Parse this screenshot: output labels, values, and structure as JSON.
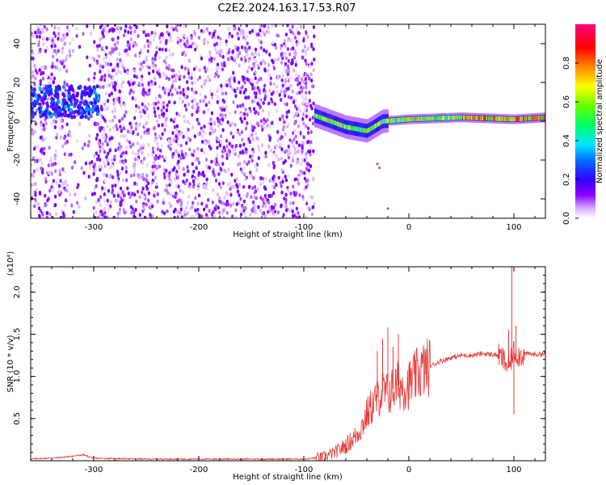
{
  "title": "C2E2.2024.163.17.53.R07",
  "chart_data": [
    {
      "type": "heatmap",
      "xlabel": "Height of straight line (km)",
      "ylabel": "Frequency (Hz)",
      "xlim": [
        -360,
        130
      ],
      "ylim": [
        -50,
        50
      ],
      "x_ticks": [
        -300,
        -200,
        -100,
        0,
        100
      ],
      "y_ticks": [
        -40,
        -20,
        0,
        20,
        40
      ],
      "colorbar": {
        "label": "Normalized spectral amplitude",
        "ticks": [
          0.0,
          0.2,
          0.4,
          0.6,
          0.8
        ],
        "tick_labels": [
          "0.0",
          "0.2",
          "0.4",
          "0.6",
          "0.8"
        ],
        "range": [
          0,
          1
        ],
        "colormap": [
          "#ffffff",
          "#d9b3ff",
          "#8a00ff",
          "#3300ff",
          "#0055ff",
          "#00e5ff",
          "#00ff66",
          "#66ff00",
          "#ffff00",
          "#ff8800",
          "#ff0000",
          "#ff0080"
        ]
      },
      "regions": [
        {
          "x_range": [
            -360,
            -90
          ],
          "freq_range": [
            -50,
            50
          ],
          "amplitude": "low (0.0-0.25)",
          "description_color": "purple noise"
        },
        {
          "x_range": [
            -360,
            -295
          ],
          "freq_center": 10,
          "freq_spread": 8,
          "amplitude": "0.2-0.45"
        },
        {
          "x_range": [
            -90,
            130
          ],
          "freq_center_track": [
            [
              -90,
              3
            ],
            [
              -60,
              -3
            ],
            [
              -40,
              -5
            ],
            [
              -25,
              0
            ],
            [
              0,
              1
            ],
            [
              50,
              2
            ],
            [
              100,
              1
            ],
            [
              130,
              2
            ]
          ],
          "amplitude": "0.3-1.0"
        }
      ]
    },
    {
      "type": "line",
      "xlabel": "Height of straight line (km)",
      "ylabel": "SNR (10 * v/v)",
      "y_multiplier": "(x10⁴)",
      "xlim": [
        -360,
        130
      ],
      "ylim": [
        0,
        2.3
      ],
      "x_ticks": [
        -300,
        -200,
        -100,
        0,
        100
      ],
      "y_ticks": [
        0.5,
        1.0,
        1.5,
        2.0
      ],
      "y_tick_labels": [
        "0.5",
        "1.0",
        "1.5",
        "2.0"
      ],
      "color": "#e83a3a",
      "series": [
        {
          "x": [
            -360,
            -330,
            -310,
            -300,
            -250,
            -200,
            -150,
            -110,
            -100,
            -90,
            -80,
            -70,
            -60,
            -50,
            -45,
            -40,
            -35,
            -30,
            -25,
            -20,
            -15,
            -10,
            -5,
            0,
            10,
            20,
            30,
            40,
            50,
            60,
            70,
            80,
            85,
            90,
            95,
            100,
            105,
            110,
            120,
            130
          ],
          "y": [
            0.02,
            0.04,
            0.07,
            0.03,
            0.02,
            0.02,
            0.02,
            0.02,
            0.02,
            0.03,
            0.05,
            0.1,
            0.18,
            0.3,
            0.4,
            0.55,
            0.65,
            0.75,
            0.82,
            0.78,
            0.85,
            0.9,
            0.88,
            0.9,
            1.05,
            1.12,
            1.18,
            1.22,
            1.25,
            1.25,
            1.27,
            1.26,
            1.25,
            1.2,
            1.1,
            1.3,
            1.25,
            1.27,
            1.26,
            1.27
          ]
        }
      ],
      "spikes": [
        {
          "x": -20,
          "y": 1.58
        },
        {
          "x": -25,
          "y": 1.45
        },
        {
          "x": -30,
          "y": 1.3
        },
        {
          "x": -15,
          "y": 1.35
        },
        {
          "x": -10,
          "y": 1.5
        },
        {
          "x": 98,
          "y": 2.3
        },
        {
          "x": 102,
          "y": 1.6
        },
        {
          "x": 95,
          "y": 1.55
        },
        {
          "x": 100,
          "y": 0.55
        }
      ]
    }
  ]
}
